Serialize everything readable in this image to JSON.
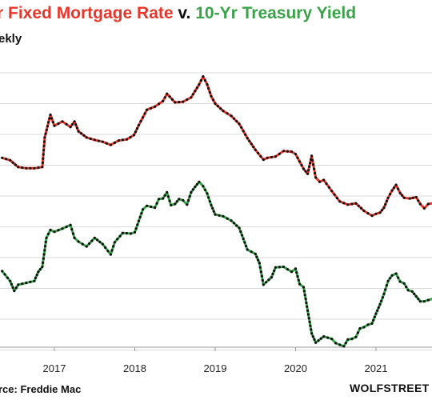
{
  "title": {
    "part1": "r Fixed Mortgage",
    "part2": "Rate",
    "part3": "v.",
    "part4": "10-Yr Treasury",
    "part5": "Yield"
  },
  "subtitle": "ekly",
  "source": "rce: Freddie Mac",
  "brand": "WOLFSTREET",
  "colors": {
    "mortgage_highlight": "#e8362a",
    "treasury_highlight": "#3aa34a",
    "markers": "#111111",
    "grid": "#d9d9d9"
  },
  "chart_data": {
    "type": "line",
    "x_unit": "year",
    "xlim": [
      2016.35,
      2021.7
    ],
    "x_ticks": [
      {
        "value": 2017,
        "label": "2017"
      },
      {
        "value": 2018,
        "label": "2018"
      },
      {
        "value": 2019,
        "label": "2019"
      },
      {
        "value": 2020,
        "label": "2020"
      },
      {
        "value": 2021,
        "label": "2021"
      }
    ],
    "grid": true,
    "legend": "none",
    "series": [
      {
        "key": "mortgage",
        "color": "#e8362a",
        "marker_color": "#111111",
        "points": [
          [
            2016.35,
            3.62
          ],
          [
            2016.45,
            3.58
          ],
          [
            2016.55,
            3.47
          ],
          [
            2016.65,
            3.45
          ],
          [
            2016.75,
            3.45
          ],
          [
            2016.85,
            3.47
          ],
          [
            2016.88,
            3.95
          ],
          [
            2016.95,
            4.32
          ],
          [
            2017.0,
            4.14
          ],
          [
            2017.1,
            4.21
          ],
          [
            2017.2,
            4.12
          ],
          [
            2017.25,
            4.21
          ],
          [
            2017.3,
            4.05
          ],
          [
            2017.4,
            3.95
          ],
          [
            2017.5,
            3.91
          ],
          [
            2017.6,
            3.88
          ],
          [
            2017.7,
            3.83
          ],
          [
            2017.8,
            3.9
          ],
          [
            2017.9,
            3.92
          ],
          [
            2017.99,
            3.99
          ],
          [
            2018.05,
            4.15
          ],
          [
            2018.15,
            4.4
          ],
          [
            2018.25,
            4.45
          ],
          [
            2018.35,
            4.54
          ],
          [
            2018.4,
            4.66
          ],
          [
            2018.5,
            4.52
          ],
          [
            2018.6,
            4.53
          ],
          [
            2018.7,
            4.6
          ],
          [
            2018.8,
            4.81
          ],
          [
            2018.85,
            4.94
          ],
          [
            2018.9,
            4.81
          ],
          [
            2018.95,
            4.62
          ],
          [
            2019.0,
            4.5
          ],
          [
            2019.1,
            4.38
          ],
          [
            2019.2,
            4.3
          ],
          [
            2019.3,
            4.17
          ],
          [
            2019.4,
            3.94
          ],
          [
            2019.5,
            3.75
          ],
          [
            2019.6,
            3.59
          ],
          [
            2019.65,
            3.62
          ],
          [
            2019.75,
            3.64
          ],
          [
            2019.85,
            3.73
          ],
          [
            2019.95,
            3.72
          ],
          [
            2020.0,
            3.68
          ],
          [
            2020.1,
            3.44
          ],
          [
            2020.15,
            3.36
          ],
          [
            2020.2,
            3.65
          ],
          [
            2020.25,
            3.3
          ],
          [
            2020.3,
            3.23
          ],
          [
            2020.35,
            3.26
          ],
          [
            2020.45,
            3.08
          ],
          [
            2020.55,
            2.91
          ],
          [
            2020.65,
            2.86
          ],
          [
            2020.75,
            2.88
          ],
          [
            2020.85,
            2.76
          ],
          [
            2020.95,
            2.68
          ],
          [
            2021.0,
            2.71
          ],
          [
            2021.05,
            2.73
          ],
          [
            2021.1,
            2.81
          ],
          [
            2021.15,
            2.97
          ],
          [
            2021.2,
            3.09
          ],
          [
            2021.25,
            3.18
          ],
          [
            2021.3,
            3.05
          ],
          [
            2021.35,
            2.97
          ],
          [
            2021.42,
            2.96
          ],
          [
            2021.5,
            2.98
          ],
          [
            2021.55,
            2.87
          ],
          [
            2021.6,
            2.8
          ],
          [
            2021.65,
            2.87
          ],
          [
            2021.7,
            2.88
          ]
        ]
      },
      {
        "key": "treasury",
        "color": "#3aa34a",
        "marker_color": "#111111",
        "points": [
          [
            2016.35,
            1.78
          ],
          [
            2016.45,
            1.62
          ],
          [
            2016.5,
            1.46
          ],
          [
            2016.55,
            1.56
          ],
          [
            2016.65,
            1.59
          ],
          [
            2016.75,
            1.62
          ],
          [
            2016.8,
            1.77
          ],
          [
            2016.85,
            1.85
          ],
          [
            2016.9,
            2.32
          ],
          [
            2016.95,
            2.45
          ],
          [
            2017.0,
            2.42
          ],
          [
            2017.1,
            2.47
          ],
          [
            2017.2,
            2.53
          ],
          [
            2017.25,
            2.32
          ],
          [
            2017.3,
            2.26
          ],
          [
            2017.4,
            2.18
          ],
          [
            2017.5,
            2.32
          ],
          [
            2017.6,
            2.22
          ],
          [
            2017.7,
            2.05
          ],
          [
            2017.75,
            2.25
          ],
          [
            2017.85,
            2.4
          ],
          [
            2017.95,
            2.39
          ],
          [
            2018.0,
            2.41
          ],
          [
            2018.1,
            2.78
          ],
          [
            2018.15,
            2.84
          ],
          [
            2018.25,
            2.81
          ],
          [
            2018.3,
            2.95
          ],
          [
            2018.35,
            2.96
          ],
          [
            2018.4,
            3.06
          ],
          [
            2018.45,
            2.85
          ],
          [
            2018.5,
            2.87
          ],
          [
            2018.55,
            2.95
          ],
          [
            2018.6,
            2.93
          ],
          [
            2018.65,
            2.86
          ],
          [
            2018.7,
            3.06
          ],
          [
            2018.75,
            3.15
          ],
          [
            2018.8,
            3.23
          ],
          [
            2018.85,
            3.16
          ],
          [
            2018.9,
            3.04
          ],
          [
            2018.95,
            2.85
          ],
          [
            2019.0,
            2.7
          ],
          [
            2019.1,
            2.67
          ],
          [
            2019.2,
            2.6
          ],
          [
            2019.3,
            2.48
          ],
          [
            2019.4,
            2.13
          ],
          [
            2019.5,
            2.06
          ],
          [
            2019.55,
            1.91
          ],
          [
            2019.6,
            1.56
          ],
          [
            2019.7,
            1.68
          ],
          [
            2019.75,
            1.84
          ],
          [
            2019.85,
            1.85
          ],
          [
            2019.95,
            1.77
          ],
          [
            2020.0,
            1.82
          ],
          [
            2020.05,
            1.57
          ],
          [
            2020.1,
            1.52
          ],
          [
            2020.15,
            1.14
          ],
          [
            2020.2,
            0.77
          ],
          [
            2020.25,
            0.62
          ],
          [
            2020.35,
            0.72
          ],
          [
            2020.45,
            0.68
          ],
          [
            2020.5,
            0.61
          ],
          [
            2020.6,
            0.56
          ],
          [
            2020.65,
            0.67
          ],
          [
            2020.7,
            0.68
          ],
          [
            2020.75,
            0.71
          ],
          [
            2020.8,
            0.85
          ],
          [
            2020.85,
            0.87
          ],
          [
            2020.9,
            0.91
          ],
          [
            2020.95,
            0.93
          ],
          [
            2021.0,
            1.09
          ],
          [
            2021.05,
            1.24
          ],
          [
            2021.1,
            1.41
          ],
          [
            2021.15,
            1.62
          ],
          [
            2021.2,
            1.71
          ],
          [
            2021.25,
            1.74
          ],
          [
            2021.3,
            1.61
          ],
          [
            2021.35,
            1.58
          ],
          [
            2021.4,
            1.47
          ],
          [
            2021.45,
            1.45
          ],
          [
            2021.5,
            1.37
          ],
          [
            2021.55,
            1.29
          ],
          [
            2021.6,
            1.29
          ],
          [
            2021.65,
            1.31
          ],
          [
            2021.7,
            1.33
          ]
        ]
      }
    ]
  }
}
